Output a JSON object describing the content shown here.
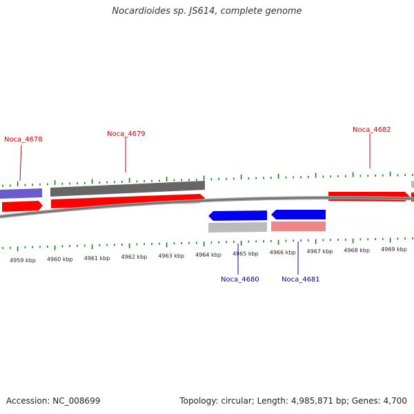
{
  "title": "Nocardioides sp. JS614, complete genome",
  "footer": {
    "accession": "Accession: NC_008699",
    "summary": "Topology: circular; Length: 4,985,871 bp; Genes: 4,700"
  },
  "colors": {
    "forward": "#ff0000",
    "reverse": "#0000ee",
    "feature_dark": "#666666",
    "feature_light": "#bbbbbb",
    "feature_pink": "#ee8888",
    "feature_purple": "#6a5acd",
    "tick": "#008800",
    "backbone": "#999999",
    "label_forward": "#cc0000",
    "label_reverse": "#0000aa"
  },
  "kbp_labels": [
    "4959 kbp",
    "4960 kbp",
    "4961 kbp",
    "4962 kbp",
    "4963 kbp",
    "4964 kbp",
    "4965 kbp",
    "4966 kbp",
    "4967 kbp",
    "4968 kbp",
    "4969 kbp"
  ],
  "genes": [
    {
      "name": "Noca_4678",
      "strand": "forward"
    },
    {
      "name": "Noca_4679",
      "strand": "forward"
    },
    {
      "name": "Noca_4682",
      "strand": "forward"
    },
    {
      "name": "Noca_4680",
      "strand": "reverse"
    },
    {
      "name": "Noca_4681",
      "strand": "reverse"
    }
  ]
}
